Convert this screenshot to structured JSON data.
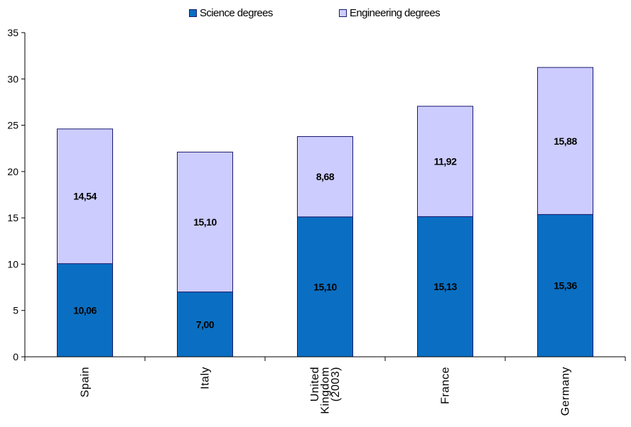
{
  "chart_data": {
    "type": "bar",
    "stacked": true,
    "categories": [
      "Spain",
      "Italy",
      "United Kingdom (2003)",
      "France",
      "Germany"
    ],
    "category_lines": [
      [
        "Spain"
      ],
      [
        "Italy"
      ],
      [
        "United",
        "Kingdom",
        "(2003)"
      ],
      [
        "France"
      ],
      [
        "Germany"
      ]
    ],
    "series": [
      {
        "name": "Science degrees",
        "values": [
          10.06,
          7.0,
          15.1,
          15.13,
          15.36
        ],
        "labels": [
          "10,06",
          "7,00",
          "15,10",
          "15,13",
          "15,36"
        ],
        "color": "#0a6fc2"
      },
      {
        "name": "Engineering degrees",
        "values": [
          14.54,
          15.1,
          8.68,
          11.92,
          15.88
        ],
        "labels": [
          "14,54",
          "15,10",
          "8,68",
          "11,92",
          "15,88"
        ],
        "color": "#ccccff"
      }
    ],
    "ylim": [
      0,
      35
    ],
    "yticks": [
      0,
      5,
      10,
      15,
      20,
      25,
      30,
      35
    ],
    "title": "",
    "xlabel": "",
    "ylabel": "",
    "grid": false,
    "legend_position": "top-center",
    "bar_outline_color": "#1a1a6e"
  }
}
